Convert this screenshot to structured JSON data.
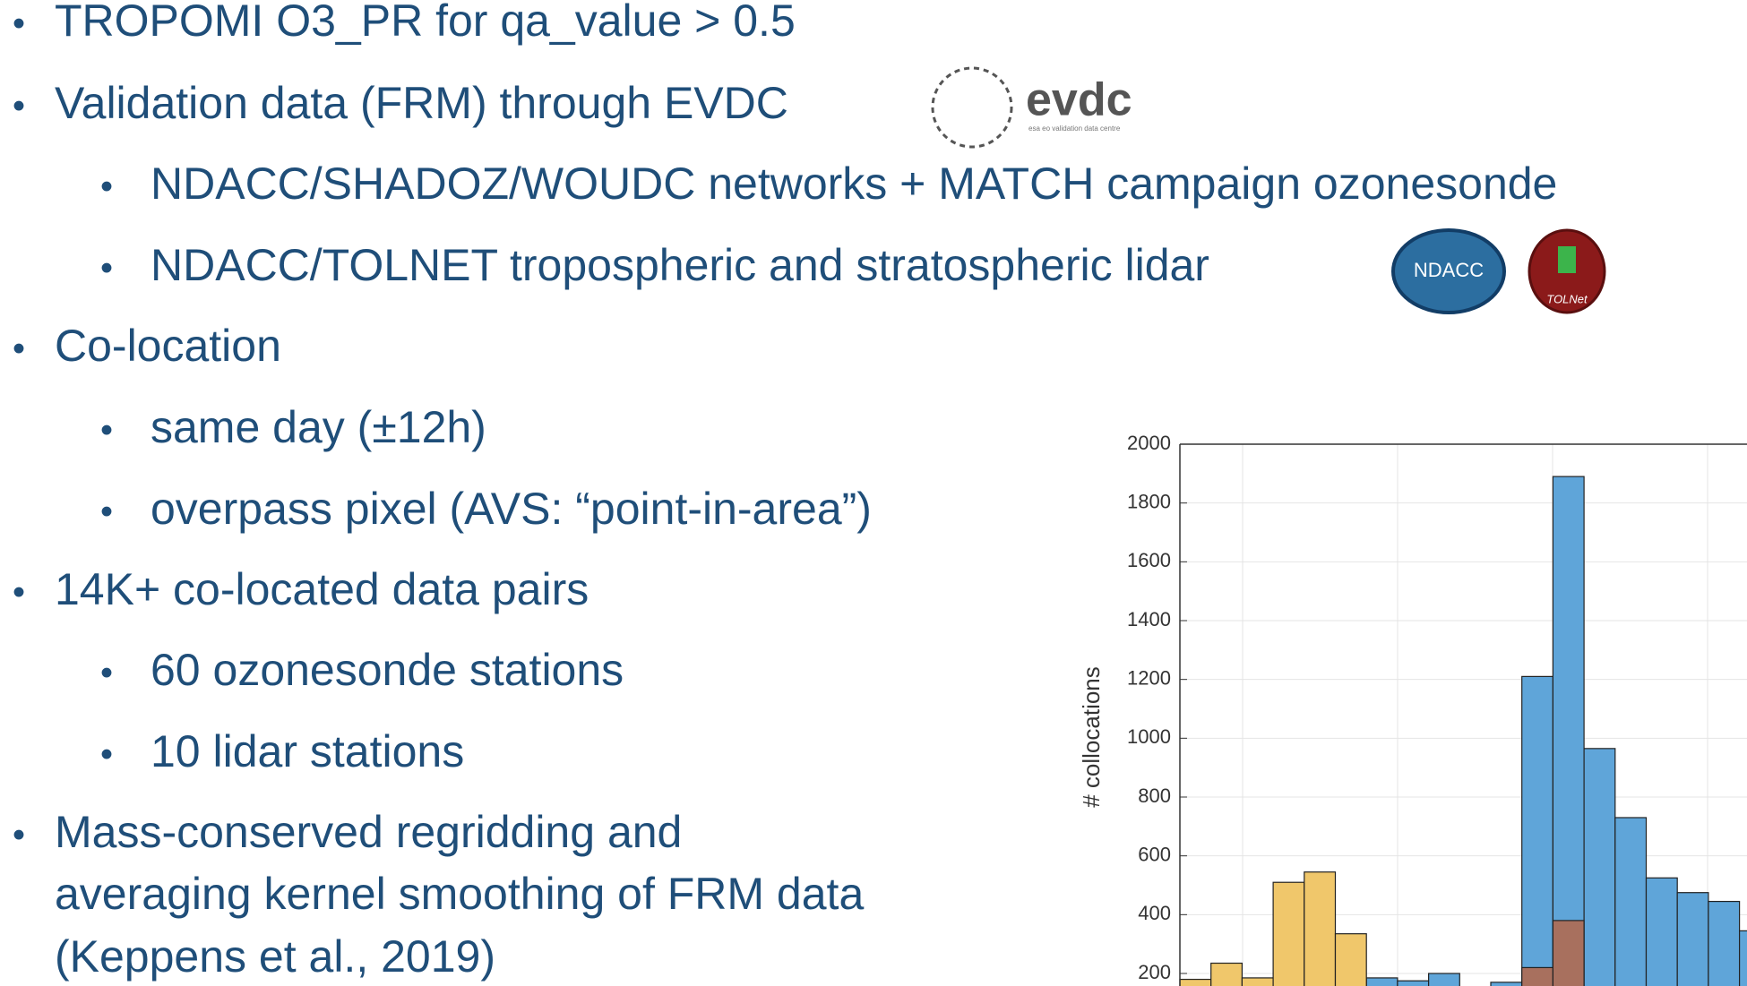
{
  "bullets": [
    {
      "level": 1,
      "text": "TROPOMI O3_PR for qa_value > 0.5"
    },
    {
      "level": 1,
      "text": "Validation data (FRM) through EVDC"
    },
    {
      "level": 2,
      "text": "NDACC/SHADOZ/WOUDC networks + MATCH campaign ozonesonde"
    },
    {
      "level": 2,
      "text": "NDACC/TOLNET tropospheric and stratospheric lidar"
    },
    {
      "level": 1,
      "text": "Co-location"
    },
    {
      "level": 2,
      "text": "same day (±12h)"
    },
    {
      "level": 2,
      "text": "overpass pixel (AVS: “point-in-area”)"
    },
    {
      "level": 1,
      "text": "14K+ co-located data pairs"
    },
    {
      "level": 2,
      "text": "60 ozonesonde stations"
    },
    {
      "level": 2,
      "text": "10 lidar stations"
    },
    {
      "level": 1,
      "lines": [
        "Mass-conserved regridding and",
        "averaging kernel smoothing of FRM data",
        "(Keppens et al., 2019)"
      ]
    }
  ],
  "logos": {
    "evdc": "evdc",
    "evdc_sub": "esa eo validation data centre",
    "ndacc": "NDACC",
    "tolnet": "TOLNet"
  },
  "chart_data": {
    "type": "bar",
    "ylabel": "# collocations",
    "categories": [
      null,
      null,
      null,
      null,
      null,
      null,
      null,
      null,
      null,
      null,
      null,
      null,
      null,
      null,
      null,
      null,
      null,
      null,
      null
    ],
    "series": [
      {
        "color": "#5fa5d9",
        "values": [
          null,
          null,
          null,
          null,
          null,
          null,
          185,
          175,
          200,
          null,
          170,
          1210,
          1890,
          965,
          730,
          525,
          475,
          445,
          345
        ]
      },
      {
        "color": "#f0c76b",
        "values": [
          180,
          235,
          185,
          510,
          545,
          335,
          null,
          null,
          null,
          null,
          null,
          null,
          null,
          null,
          null,
          null,
          null,
          null,
          null
        ]
      },
      {
        "color": "#a8705e",
        "values": [
          null,
          null,
          null,
          null,
          null,
          null,
          null,
          null,
          null,
          null,
          null,
          220,
          380,
          null,
          null,
          null,
          null,
          null,
          null
        ]
      }
    ],
    "ylim": [
      0,
      2000
    ],
    "yticks": [
      200,
      400,
      600,
      800,
      1000,
      1200,
      1400,
      1600,
      1800,
      2000
    ],
    "grid": true
  }
}
